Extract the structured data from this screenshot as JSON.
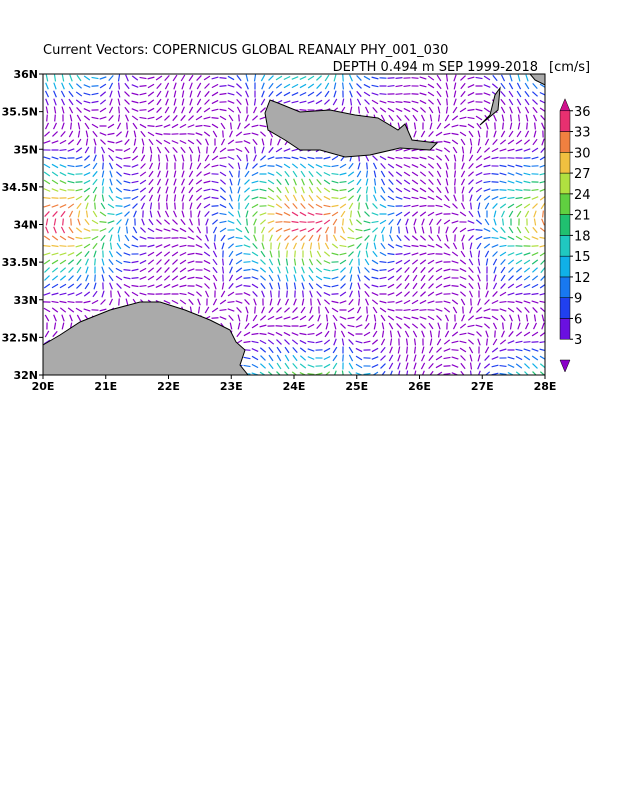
{
  "map": {
    "title": "Current Vectors: COPERNICUS GLOBAL REANALY PHY_001_030",
    "subtitle": "DEPTH 0.494 m   SEP 1999-2018",
    "units": "[cm/s]",
    "xlim": [
      20,
      28
    ],
    "ylim": [
      32,
      36
    ],
    "xticks": [
      {
        "value": 20,
        "label": "20E"
      },
      {
        "value": 21,
        "label": "21E"
      },
      {
        "value": 22,
        "label": "22E"
      },
      {
        "value": 23,
        "label": "23E"
      },
      {
        "value": 24,
        "label": "24E"
      },
      {
        "value": 25,
        "label": "25E"
      },
      {
        "value": 26,
        "label": "26E"
      },
      {
        "value": 27,
        "label": "27E"
      },
      {
        "value": 28,
        "label": "28E"
      }
    ],
    "yticks": [
      {
        "value": 32,
        "label": "32N"
      },
      {
        "value": 32.5,
        "label": "32.5N"
      },
      {
        "value": 33,
        "label": "33N"
      },
      {
        "value": 33.5,
        "label": "33.5N"
      },
      {
        "value": 34,
        "label": "34N"
      },
      {
        "value": 34.5,
        "label": "34.5N"
      },
      {
        "value": 35,
        "label": "35N"
      },
      {
        "value": 35.5,
        "label": "35.5N"
      },
      {
        "value": 36,
        "label": "36N"
      }
    ],
    "colorbar": {
      "ticks": [
        3,
        6,
        9,
        12,
        15,
        18,
        21,
        24,
        27,
        30,
        33,
        36
      ],
      "colors": [
        "#8a00c8",
        "#6a10e0",
        "#2040f0",
        "#1878f0",
        "#10b0e8",
        "#20c8c0",
        "#20c070",
        "#60d040",
        "#b0e040",
        "#f0c040",
        "#f08040",
        "#e83070",
        "#d0108c"
      ]
    }
  }
}
